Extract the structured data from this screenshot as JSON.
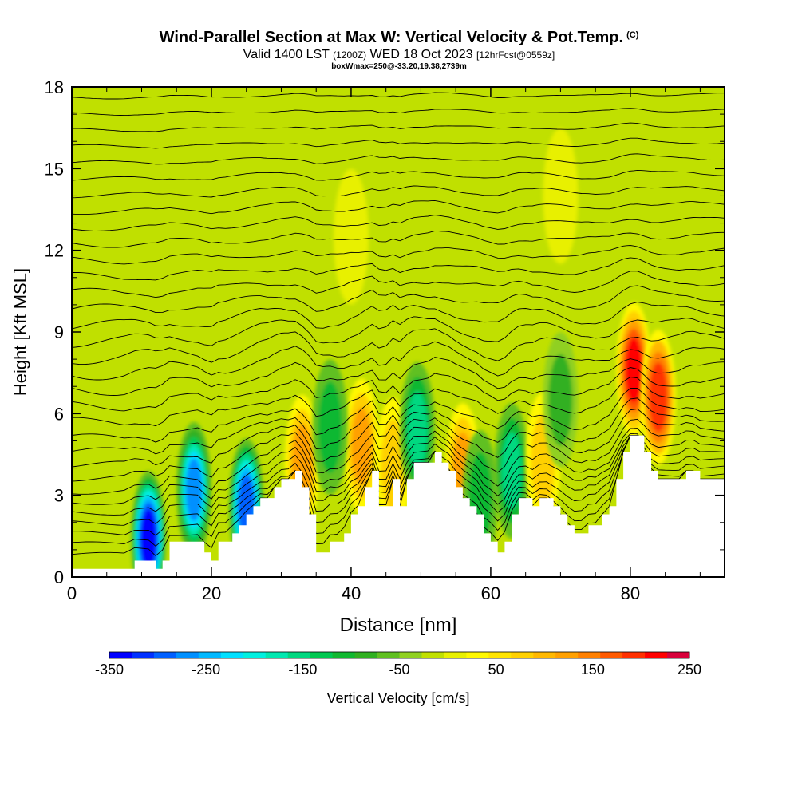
{
  "header": {
    "title": "Wind-Parallel Section at Max W: Vertical Velocity & Pot.Temp.",
    "copyright": "(C)",
    "valid_prefix": "Valid 1400 LST",
    "valid_utc": "(1200Z)",
    "valid_date": "WED 18 Oct 2023",
    "forecast": "[12hrFcst@0559z]",
    "box_info": "boxWmax=250@-33.20,19.38,2739m"
  },
  "chart_data": {
    "type": "heatmap",
    "xlabel": "Distance [nm]",
    "ylabel": "Height [Kft MSL]",
    "xlim": [
      0,
      93.5
    ],
    "ylim": [
      0,
      18
    ],
    "x_ticks": [
      "0",
      "20",
      "40",
      "60",
      "80"
    ],
    "x_tick_values": [
      0,
      20,
      40,
      60,
      80
    ],
    "y_ticks": [
      "0",
      "3",
      "6",
      "9",
      "12",
      "15",
      "18"
    ],
    "y_tick_values": [
      0,
      3,
      6,
      9,
      12,
      15,
      18
    ],
    "background_value": 20,
    "terrain": {
      "x": [
        0,
        5,
        7.5,
        9,
        10,
        11,
        12,
        13,
        14,
        15,
        16,
        17,
        18,
        19,
        20,
        21,
        22,
        23,
        24,
        25,
        26,
        27,
        28,
        29,
        30,
        31,
        32,
        33,
        34,
        35,
        36,
        37,
        38,
        39,
        40,
        41,
        42,
        43,
        44,
        45,
        46,
        47,
        48,
        49,
        50,
        51,
        52,
        53,
        54,
        55,
        56,
        57,
        58,
        59,
        60,
        61,
        62,
        63,
        64,
        65,
        66,
        67,
        68,
        69,
        70,
        71,
        72,
        73,
        74,
        75,
        76,
        77,
        78,
        79,
        80,
        81,
        82,
        83,
        84,
        85,
        86,
        87,
        88,
        89,
        90,
        91,
        92,
        93.5
      ],
      "height_kft": [
        0.3,
        0.3,
        0.3,
        0.6,
        0.6,
        0.6,
        0.3,
        0.6,
        1.3,
        1.3,
        1.3,
        1.3,
        1.3,
        0.9,
        0.6,
        1.3,
        1.3,
        1.6,
        1.9,
        2.3,
        2.6,
        2.9,
        2.9,
        3.3,
        3.6,
        3.6,
        3.9,
        3.3,
        2.3,
        0.9,
        0.9,
        1.3,
        1.3,
        1.6,
        2.3,
        2.6,
        3.3,
        3.9,
        2.6,
        2.6,
        3.6,
        2.6,
        3.6,
        4.2,
        4.2,
        4.2,
        4.6,
        4.2,
        3.9,
        3.3,
        2.9,
        2.6,
        2.3,
        1.6,
        1.3,
        0.9,
        1.3,
        2.3,
        2.9,
        2.9,
        2.6,
        2.9,
        2.9,
        2.6,
        2.3,
        1.9,
        1.6,
        1.6,
        1.9,
        1.9,
        2.3,
        2.6,
        3.6,
        4.6,
        5.2,
        5.2,
        4.6,
        3.9,
        3.6,
        3.6,
        3.6,
        3.6,
        3.9,
        3.9,
        3.6,
        3.6,
        3.6,
        3.6
      ]
    },
    "vertical_velocity_features": [
      {
        "x": 11,
        "y": 1.4,
        "value": -350
      },
      {
        "x": 17.5,
        "y": 3.2,
        "value": -260
      },
      {
        "x": 25,
        "y": 2.6,
        "value": -300
      },
      {
        "x": 33,
        "y": 4.2,
        "value": 150
      },
      {
        "x": 41.5,
        "y": 4.8,
        "value": 150
      },
      {
        "x": 46,
        "y": 4.1,
        "value": 110
      },
      {
        "x": 49.5,
        "y": 5.4,
        "value": -150
      },
      {
        "x": 56,
        "y": 3.9,
        "value": 150
      },
      {
        "x": 58.5,
        "y": 2.9,
        "value": -100
      },
      {
        "x": 63,
        "y": 3.9,
        "value": -150
      },
      {
        "x": 67.5,
        "y": 4.3,
        "value": 110
      },
      {
        "x": 80.5,
        "y": 7.6,
        "value": 250
      },
      {
        "x": 84,
        "y": 6.6,
        "value": 230
      },
      {
        "x": 70,
        "y": 6.5,
        "value": -60
      },
      {
        "x": 37,
        "y": 5.5,
        "value": -80
      },
      {
        "x": 40,
        "y": 12.5,
        "value": 40
      },
      {
        "x": 70,
        "y": 14.0,
        "value": 40
      }
    ],
    "potential_temperature_contours": {
      "interval_k": 1,
      "levels_kft": [
        0.6,
        1.0,
        1.4,
        1.8,
        2.2,
        2.6,
        3.0,
        3.5,
        4.0,
        4.5,
        5.0,
        5.6,
        6.2,
        6.8,
        7.4,
        8.0,
        8.6,
        9.2,
        9.8,
        10.4,
        11.0,
        11.6,
        12.2,
        12.8,
        13.4,
        14.0,
        14.6,
        15.2,
        15.8,
        16.4,
        17.0,
        17.6
      ]
    },
    "colorbar": {
      "label": "Vertical Velocity [cm/s]",
      "tick_labels": [
        "-350",
        "-250",
        "-150",
        "-50",
        "50",
        "150",
        "250"
      ],
      "tick_values": [
        -350,
        -250,
        -150,
        -50,
        50,
        150,
        250
      ],
      "min": -350,
      "max": 250,
      "step": 25,
      "colors": [
        "#0000ff",
        "#0030ff",
        "#0060ff",
        "#0090ff",
        "#00b8ff",
        "#00e0ff",
        "#00f0e0",
        "#00e8b0",
        "#00d880",
        "#00c850",
        "#10b830",
        "#30b020",
        "#60c020",
        "#90d020",
        "#c0e000",
        "#e8f000",
        "#fff800",
        "#ffe400",
        "#ffd000",
        "#ffb800",
        "#ffa000",
        "#ff8000",
        "#ff5a00",
        "#ff3000",
        "#ff0000",
        "#d8003a"
      ]
    }
  }
}
